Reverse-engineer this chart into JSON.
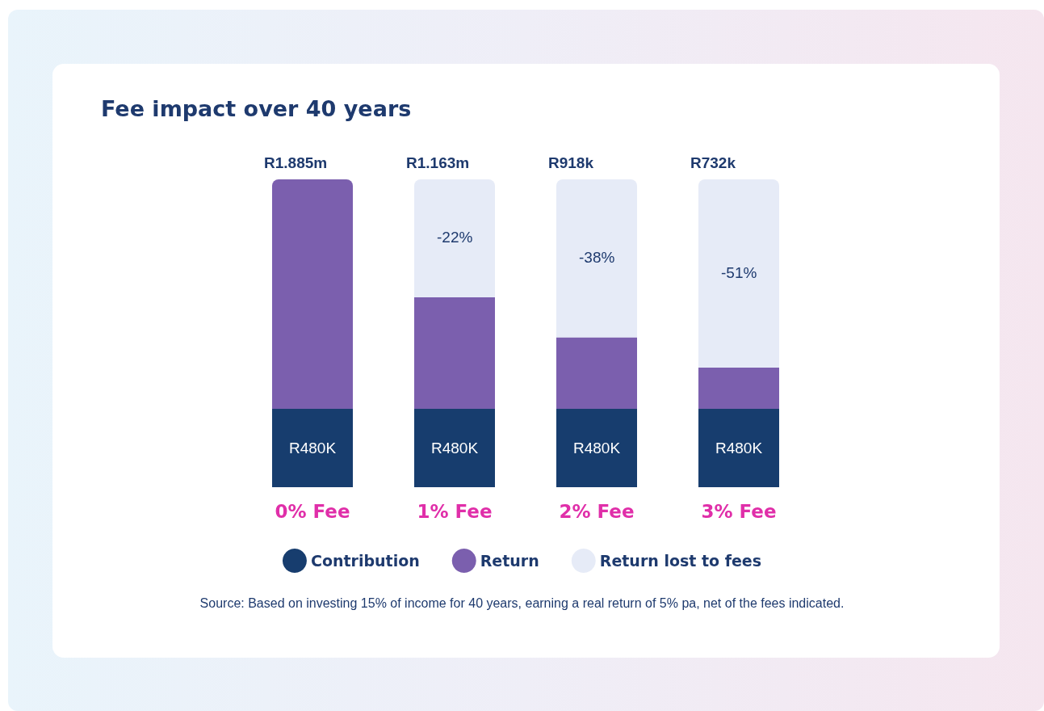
{
  "chart_data": {
    "type": "bar",
    "title": "Fee impact over 40 years",
    "categories": [
      "0% Fee",
      "1% Fee",
      "2% Fee",
      "3% Fee"
    ],
    "stacked": true,
    "legend": "bottom",
    "series": [
      {
        "name": "Contribution",
        "color": "#173d6e",
        "values": [
          480000,
          480000,
          480000,
          480000
        ],
        "value_labels": [
          "R480K",
          "R480K",
          "R480K",
          "R480K"
        ]
      },
      {
        "name": "Return",
        "color": "#7b5fae",
        "values": [
          1405000,
          683000,
          438000,
          252000
        ]
      },
      {
        "name": "Return lost to fees",
        "color": "#e6ebf7",
        "values": [
          0,
          722000,
          967000,
          1153000
        ]
      }
    ],
    "totals": [
      "R1.885m",
      "R1.163m",
      "R918k",
      "R732k"
    ],
    "annotations": [
      "-22%",
      "-38%",
      "-51%",
      "Source: Based on investing 15% of income for 40 years, earning a real return of 5% pa, net of the fees indicated."
    ]
  }
}
